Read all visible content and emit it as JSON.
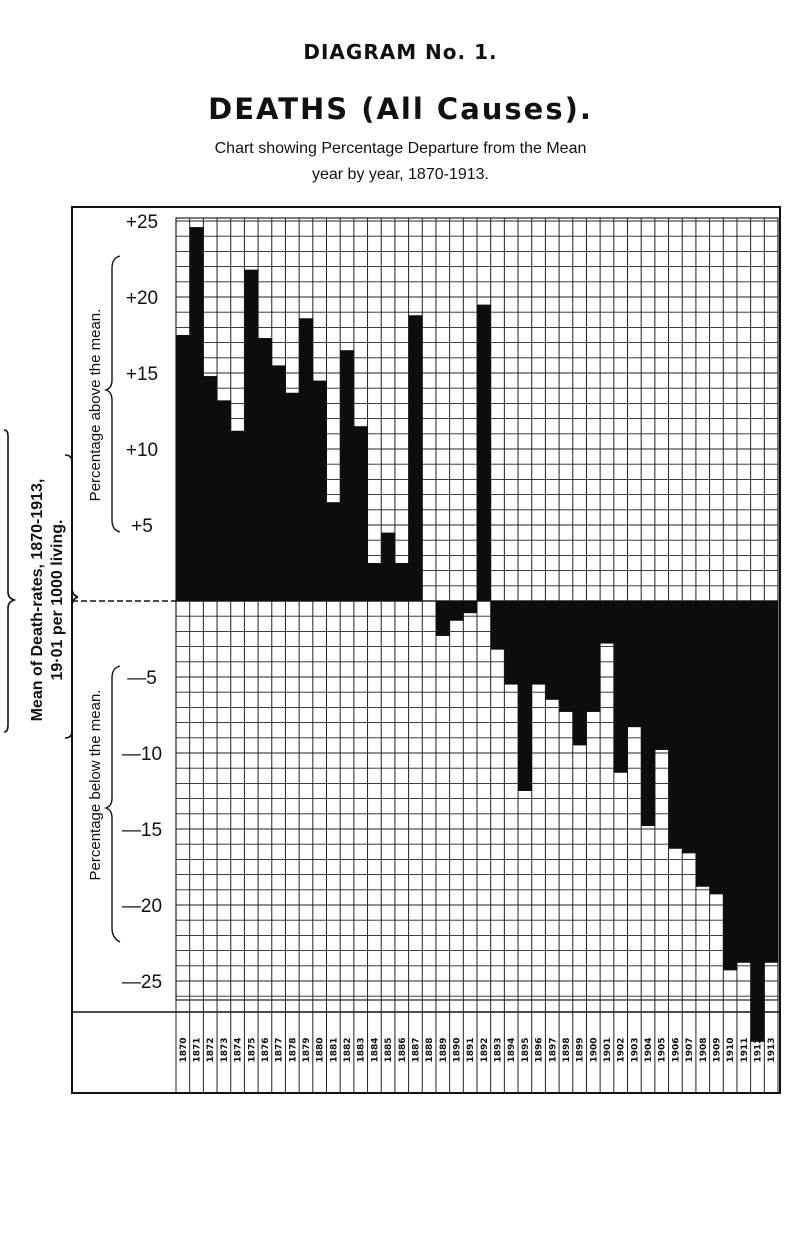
{
  "header": {
    "diagram_number": "DIAGRAM No. 1.",
    "title": "DEATHS (All Causes).",
    "subtitle_line1": "Chart showing Percentage Departure from the Mean",
    "subtitle_line2": "year by year, 1870-1913."
  },
  "side_label": {
    "line1": "Mean of Death-rates, 1870-1913,",
    "line2": "19·01 per 1000 living."
  },
  "chart_data": {
    "type": "bar",
    "xlabel": "",
    "ylabel_above": "Percentage above the mean.",
    "ylabel_below": "Percentage below the mean.",
    "tick_labels": [
      "+25",
      "+20",
      "+15",
      "+10",
      "+5",
      "—5",
      "—10",
      "—15",
      "—20",
      "—25"
    ],
    "tick_values": [
      25,
      20,
      15,
      10,
      5,
      -5,
      -10,
      -15,
      -20,
      -25
    ],
    "ylim": [
      -29,
      29.5
    ],
    "grid": true,
    "categories": [
      "1870",
      "1871",
      "1872",
      "1873",
      "1874",
      "1875",
      "1876",
      "1877",
      "1878",
      "1879",
      "1880",
      "1881",
      "1882",
      "1883",
      "1884",
      "1885",
      "1886",
      "1887",
      "1888",
      "1889",
      "1890",
      "1891",
      "1892",
      "1893",
      "1894",
      "1895",
      "1896",
      "1897",
      "1898",
      "1899",
      "1900",
      "1901",
      "1902",
      "1903",
      "1904",
      "1905",
      "1906",
      "1907",
      "1908",
      "1909",
      "1910",
      "1911",
      "1912",
      "1913"
    ],
    "values": [
      17.5,
      24.6,
      14.8,
      13.2,
      11.2,
      21.8,
      17.3,
      15.5,
      13.7,
      18.6,
      14.5,
      6.5,
      16.5,
      11.5,
      2.5,
      4.5,
      2.5,
      18.8,
      0,
      -2.3,
      -1.3,
      -0.8,
      19.5,
      -3.2,
      -5.5,
      -12.5,
      -5.5,
      -6.5,
      -7.3,
      -9.5,
      -7.3,
      -2.8,
      -11.3,
      -8.3,
      -14.8,
      -9.8,
      -16.3,
      -16.6,
      -18.8,
      -19.3,
      -24.3,
      -23.8,
      -29.0,
      -23.8
    ],
    "colors": {
      "bar": "#0d0d0d",
      "grid": "#222222",
      "background": "#ffffff"
    }
  }
}
